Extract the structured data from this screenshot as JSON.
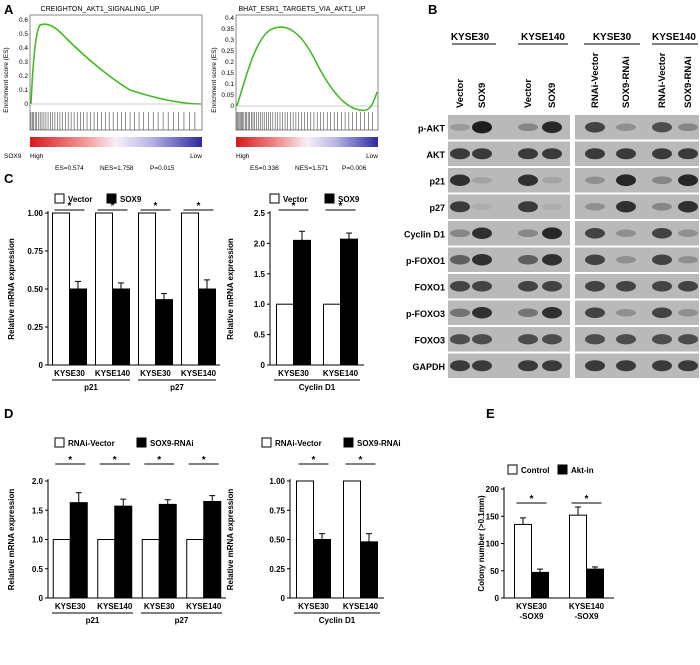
{
  "panels": {
    "A": "A",
    "B": "B",
    "C": "C",
    "D": "D",
    "E": "E"
  },
  "gsea": [
    {
      "title": "CREIGHTON_AKT1_SIGNALING_UP",
      "ylabel": "Enrichment score (ES)",
      "yticks": [
        "0.6",
        "0.5",
        "0.4",
        "0.3",
        "0.2",
        "0.1",
        "0"
      ],
      "side_label": "SOX9",
      "high": "High",
      "low": "Low",
      "stats": [
        "ES=0.574",
        "NES=1.758",
        "P=0.015"
      ]
    },
    {
      "title": "BHAT_ESR1_TARGETS_VIA_AKT1_UP",
      "ylabel": "Enrichment score (ES)",
      "yticks": [
        "0.4",
        "0.35",
        "0.3",
        "0.25",
        "0.2",
        "0.15",
        "0.1",
        "0.05",
        "0"
      ],
      "side_label": "",
      "high": "High",
      "low": "Low",
      "stats": [
        "ES=0.336",
        "NES=1.571",
        "P=0.006"
      ]
    }
  ],
  "western": {
    "cell_groups": [
      "KYSE30",
      "KYSE140",
      "KYSE30",
      "KYSE140"
    ],
    "lanes": [
      "Vector",
      "SOX9",
      "Vector",
      "SOX9",
      "RNAi-Vector",
      "SOX9-RNAi",
      "RNAi-Vector",
      "SOX9-RNAi"
    ],
    "rows": [
      "p-AKT",
      "AKT",
      "p21",
      "p27",
      "Cyclin D1",
      "p-FOXO1",
      "FOXO1",
      "p-FOXO3",
      "FOXO3",
      "GAPDH"
    ]
  },
  "significance_mark": "*",
  "chart_data": [
    {
      "id": "C-left",
      "type": "bar",
      "legend": [
        "Vector",
        "SOX9"
      ],
      "categories": [
        "KYSE30",
        "KYSE140",
        "KYSE30",
        "KYSE140"
      ],
      "groups": [
        "p21",
        "p27"
      ],
      "ylabel": "Relative mRNA expression",
      "yticks": [
        "0",
        "0.25",
        "0.50",
        "0.75",
        "1.00"
      ],
      "ylim": [
        0,
        1.0
      ],
      "series": [
        {
          "name": "Vector",
          "values": [
            1.0,
            1.0,
            1.0,
            1.0
          ],
          "errors": [
            0,
            0,
            0,
            0
          ]
        },
        {
          "name": "SOX9",
          "values": [
            0.5,
            0.5,
            0.43,
            0.5
          ],
          "errors": [
            0.05,
            0.04,
            0.04,
            0.06
          ]
        }
      ]
    },
    {
      "id": "C-right",
      "type": "bar",
      "legend": [
        "Vector",
        "SOX9"
      ],
      "categories": [
        "KYSE30",
        "KYSE140"
      ],
      "groups": [
        "Cyclin D1"
      ],
      "ylabel": "Relative mRNA expression",
      "yticks": [
        "0",
        "0.5",
        "1.0",
        "1.5",
        "2.0",
        "2.5"
      ],
      "ylim": [
        0,
        2.5
      ],
      "series": [
        {
          "name": "Vector",
          "values": [
            1.0,
            1.0
          ],
          "errors": [
            0,
            0
          ]
        },
        {
          "name": "SOX9",
          "values": [
            2.05,
            2.07
          ],
          "errors": [
            0.15,
            0.1
          ]
        }
      ]
    },
    {
      "id": "D-left",
      "type": "bar",
      "legend": [
        "RNAi-Vector",
        "SOX9-RNAi"
      ],
      "categories": [
        "KYSE30",
        "KYSE140",
        "KYSE30",
        "KYSE140"
      ],
      "groups": [
        "p21",
        "p27"
      ],
      "ylabel": "Relative mRNA expression",
      "yticks": [
        "0",
        "0.5",
        "1.0",
        "1.5",
        "2.0"
      ],
      "ylim": [
        0,
        2.0
      ],
      "series": [
        {
          "name": "RNAi-Vector",
          "values": [
            1.0,
            1.0,
            1.0,
            1.0
          ],
          "errors": [
            0,
            0,
            0,
            0
          ]
        },
        {
          "name": "SOX9-RNAi",
          "values": [
            1.63,
            1.57,
            1.6,
            1.65
          ],
          "errors": [
            0.17,
            0.12,
            0.08,
            0.1
          ]
        }
      ]
    },
    {
      "id": "D-right",
      "type": "bar",
      "legend": [
        "RNAi-Vector",
        "SOX9-RNAi"
      ],
      "categories": [
        "KYSE30",
        "KYSE140"
      ],
      "groups": [
        "Cyclin D1"
      ],
      "ylabel": "Relative mRNA expression",
      "yticks": [
        "0",
        "0.25",
        "0.50",
        "0.75",
        "1.00"
      ],
      "ylim": [
        0,
        1.0
      ],
      "series": [
        {
          "name": "RNAi-Vector",
          "values": [
            1.0,
            1.0
          ],
          "errors": [
            0,
            0
          ]
        },
        {
          "name": "SOX9-RNAi",
          "values": [
            0.5,
            0.48
          ],
          "errors": [
            0.05,
            0.07
          ]
        }
      ]
    },
    {
      "id": "E",
      "type": "bar",
      "legend": [
        "Control",
        "Akt-in"
      ],
      "categories": [
        "KYSE30\n-SOX9",
        "KYSE140\n-SOX9"
      ],
      "groups": [],
      "ylabel": "Colony number (>0.1mm)",
      "yticks": [
        "0",
        "50",
        "100",
        "150",
        "200"
      ],
      "ylim": [
        0,
        200
      ],
      "series": [
        {
          "name": "Control",
          "values": [
            135,
            152
          ],
          "errors": [
            12,
            15
          ]
        },
        {
          "name": "Akt-in",
          "values": [
            47,
            53
          ],
          "errors": [
            6,
            4
          ]
        }
      ]
    }
  ]
}
